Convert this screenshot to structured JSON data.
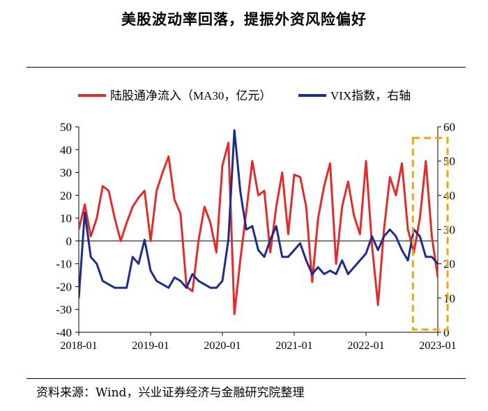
{
  "title": "美股波动率回落，提振外资风险偏好",
  "source": "资料来源：Wind，兴业证券经济与金融研究院整理",
  "chart_data": {
    "type": "line",
    "legend": [
      {
        "name": "陆股通净流入（MA30，亿元）",
        "color": "#e32b2b"
      },
      {
        "name": "VIX指数，右轴",
        "color": "#1c2c8a"
      }
    ],
    "legend_position": "top",
    "x_ticks": [
      "2018-01",
      "2019-01",
      "2020-01",
      "2021-01",
      "2022-01",
      "2023-01"
    ],
    "x_range": [
      "2018-01",
      "2023-01"
    ],
    "y_left": {
      "ticks": [
        "50",
        "40",
        "30",
        "20",
        "10",
        "0",
        "-10",
        "-20",
        "-30",
        "-40"
      ],
      "range": [
        -40,
        50
      ]
    },
    "y_right": {
      "ticks": [
        "60",
        "50",
        "40",
        "30",
        "20",
        "10",
        "0"
      ],
      "range": [
        0,
        60
      ]
    },
    "series": [
      {
        "name": "陆股通净流入（MA30，亿元）",
        "axis": "left",
        "color": "#e32b2b",
        "x": [
          "2018-01",
          "2018-02",
          "2018-03",
          "2018-04",
          "2018-05",
          "2018-06",
          "2018-07",
          "2018-08",
          "2018-09",
          "2018-10",
          "2018-11",
          "2018-12",
          "2019-01",
          "2019-02",
          "2019-03",
          "2019-04",
          "2019-05",
          "2019-06",
          "2019-07",
          "2019-08",
          "2019-09",
          "2019-10",
          "2019-11",
          "2019-12",
          "2020-01",
          "2020-02",
          "2020-03",
          "2020-04",
          "2020-05",
          "2020-06",
          "2020-07",
          "2020-08",
          "2020-09",
          "2020-10",
          "2020-11",
          "2020-12",
          "2021-01",
          "2021-02",
          "2021-03",
          "2021-04",
          "2021-05",
          "2021-06",
          "2021-07",
          "2021-08",
          "2021-09",
          "2021-10",
          "2021-11",
          "2021-12",
          "2022-01",
          "2022-02",
          "2022-03",
          "2022-04",
          "2022-05",
          "2022-06",
          "2022-07",
          "2022-08",
          "2022-09",
          "2022-10",
          "2022-11",
          "2022-12",
          "2023-01"
        ],
        "y": [
          5,
          16,
          2,
          10,
          24,
          22,
          10,
          0,
          8,
          15,
          19,
          22,
          0,
          22,
          30,
          37,
          18,
          12,
          -20,
          -22,
          0,
          15,
          8,
          -5,
          33,
          43,
          -32,
          -8,
          13,
          35,
          20,
          22,
          -5,
          15,
          30,
          3,
          29,
          28,
          15,
          -18,
          10,
          24,
          34,
          -10,
          15,
          26,
          11,
          3,
          35,
          -2,
          -28,
          5,
          28,
          20,
          34,
          5,
          -5,
          10,
          35,
          2,
          -16
        ]
      },
      {
        "name": "VIX指数，右轴",
        "axis": "right",
        "color": "#1c2c8a",
        "x": [
          "2018-01",
          "2018-02",
          "2018-03",
          "2018-04",
          "2018-05",
          "2018-06",
          "2018-07",
          "2018-08",
          "2018-09",
          "2018-10",
          "2018-11",
          "2018-12",
          "2019-01",
          "2019-02",
          "2019-03",
          "2019-04",
          "2019-05",
          "2019-06",
          "2019-07",
          "2019-08",
          "2019-09",
          "2019-10",
          "2019-11",
          "2019-12",
          "2020-01",
          "2020-02",
          "2020-03",
          "2020-04",
          "2020-05",
          "2020-06",
          "2020-07",
          "2020-08",
          "2020-09",
          "2020-10",
          "2020-11",
          "2020-12",
          "2021-01",
          "2021-02",
          "2021-03",
          "2021-04",
          "2021-05",
          "2021-06",
          "2021-07",
          "2021-08",
          "2021-09",
          "2021-10",
          "2021-11",
          "2021-12",
          "2022-01",
          "2022-02",
          "2022-03",
          "2022-04",
          "2022-05",
          "2022-06",
          "2022-07",
          "2022-08",
          "2022-09",
          "2022-10",
          "2022-11",
          "2022-12",
          "2023-01"
        ],
        "y": [
          10,
          35,
          22,
          20,
          15,
          14,
          13,
          13,
          13,
          22,
          20,
          27,
          18,
          15,
          14,
          13,
          16,
          15,
          13,
          17,
          15,
          14,
          13,
          13,
          15,
          27,
          59,
          41,
          30,
          31,
          24,
          22,
          27,
          31,
          22,
          22,
          24,
          26,
          21,
          17,
          19,
          17,
          18,
          17,
          21,
          17,
          19,
          21,
          23,
          28,
          24,
          28,
          30,
          28,
          24,
          21,
          30,
          28,
          22,
          22,
          20
        ]
      }
    ],
    "highlight_box": {
      "from": "2022-10",
      "to": "2023-01",
      "color": "#f0a800",
      "style": "dashed"
    }
  }
}
